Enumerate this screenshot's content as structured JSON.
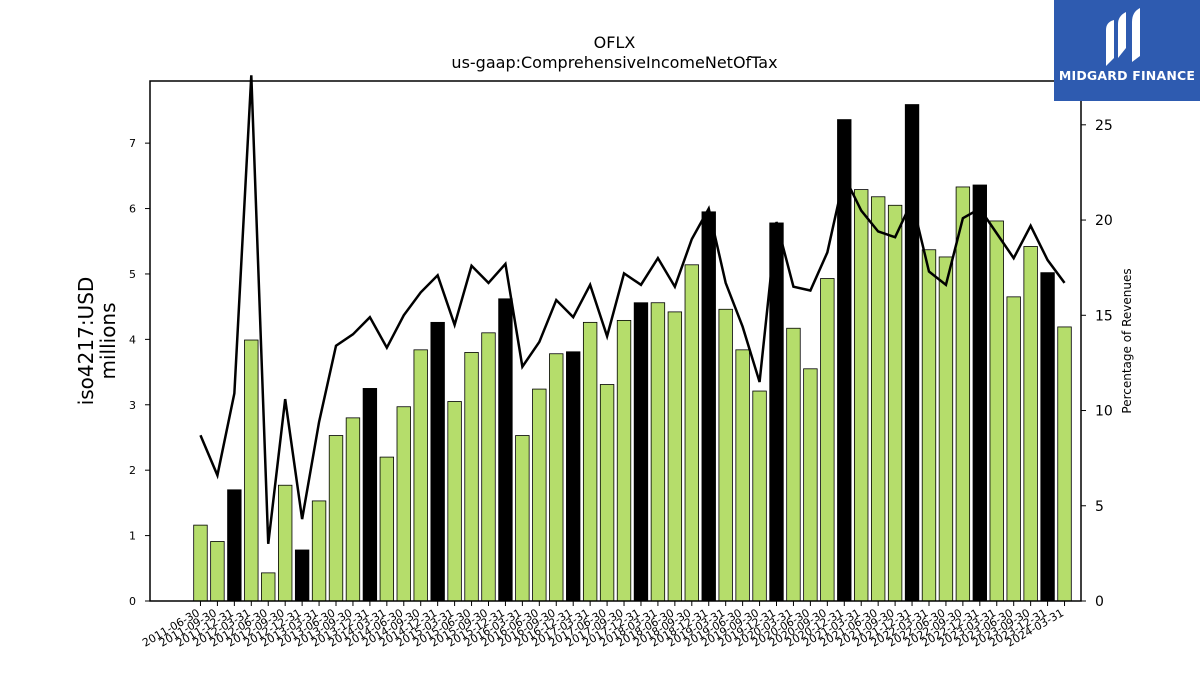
{
  "logo": {
    "text": "MIDGARD FINANCE",
    "bg_color": "#2e5bb0"
  },
  "chart_data": {
    "type": "bar",
    "title": "OFLX",
    "subtitle": "us-gaap:ComprehensiveIncomeNetOfTax",
    "ylabel": "iso4217:USD\nmillions",
    "y2label": "Percentage of Revenues",
    "ylim": [
      0,
      7.95
    ],
    "y2lim": [
      0,
      27.3
    ],
    "yticks": [
      0,
      1,
      2,
      3,
      4,
      5,
      6,
      7
    ],
    "y2ticks": [
      0,
      5,
      10,
      15,
      20,
      25
    ],
    "bar_color": "#b5dd6b",
    "highlight_color": "#000000",
    "line_color": "#000000",
    "categories": [
      "2011-06-30",
      "2011-09-30",
      "2011-12-31",
      "2012-03-31",
      "2012-06-30",
      "2012-09-30",
      "2012-12-31",
      "2013-03-31",
      "2013-06-30",
      "2013-09-30",
      "2013-12-31",
      "2014-03-31",
      "2014-06-30",
      "2014-09-30",
      "2014-12-31",
      "2015-03-31",
      "2015-06-30",
      "2015-09-30",
      "2015-12-31",
      "2016-03-31",
      "2016-06-30",
      "2016-09-30",
      "2016-12-31",
      "2017-03-31",
      "2017-06-30",
      "2017-09-30",
      "2017-12-31",
      "2018-03-31",
      "2018-06-30",
      "2018-09-30",
      "2018-12-31",
      "2019-03-31",
      "2019-06-30",
      "2019-09-30",
      "2019-12-31",
      "2020-03-31",
      "2020-06-30",
      "2020-09-30",
      "2020-12-31",
      "2021-03-31",
      "2021-06-30",
      "2021-09-30",
      "2021-12-31",
      "2022-03-31",
      "2022-06-30",
      "2022-09-30",
      "2022-12-31",
      "2023-03-31",
      "2023-06-30",
      "2023-09-30",
      "2023-12-31",
      "2024-03-31"
    ],
    "series": [
      {
        "kind": "bar",
        "values": [
          1.16,
          0.91,
          1.7,
          3.99,
          0.43,
          1.77,
          0.78,
          1.53,
          2.53,
          2.8,
          3.25,
          2.2,
          2.97,
          3.84,
          4.26,
          3.05,
          3.8,
          4.1,
          4.62,
          2.53,
          3.24,
          3.78,
          3.81,
          4.26,
          3.31,
          4.29,
          4.56,
          4.56,
          4.42,
          5.14,
          5.95,
          4.46,
          3.84,
          3.21,
          5.78,
          4.17,
          3.55,
          4.93,
          7.36,
          6.29,
          6.18,
          6.05,
          7.59,
          5.37,
          5.26,
          6.33,
          6.36,
          5.81,
          4.65,
          5.42,
          5.02,
          4.19
        ],
        "highlight": [
          false,
          false,
          true,
          false,
          false,
          false,
          true,
          false,
          false,
          false,
          true,
          false,
          false,
          false,
          true,
          false,
          false,
          false,
          true,
          false,
          false,
          false,
          true,
          false,
          false,
          false,
          true,
          false,
          false,
          false,
          true,
          false,
          false,
          false,
          true,
          false,
          false,
          false,
          true,
          false,
          false,
          false,
          true,
          false,
          false,
          false,
          true,
          false,
          false,
          false,
          true,
          false
        ]
      },
      {
        "kind": "line",
        "axis": "right",
        "values": [
          8.7,
          6.6,
          10.9,
          27.6,
          3.0,
          10.6,
          4.3,
          9.4,
          13.4,
          14.0,
          14.9,
          13.3,
          15.0,
          16.2,
          17.1,
          14.5,
          17.6,
          16.7,
          17.7,
          12.3,
          13.6,
          15.8,
          14.9,
          16.6,
          13.9,
          17.2,
          16.6,
          18.0,
          16.5,
          19.0,
          20.6,
          16.7,
          14.4,
          11.5,
          19.9,
          16.5,
          16.3,
          18.3,
          22.3,
          20.5,
          19.4,
          19.1,
          21.0,
          17.3,
          16.6,
          20.1,
          20.6,
          19.3,
          18.0,
          19.7,
          17.9,
          16.7
        ]
      }
    ]
  }
}
